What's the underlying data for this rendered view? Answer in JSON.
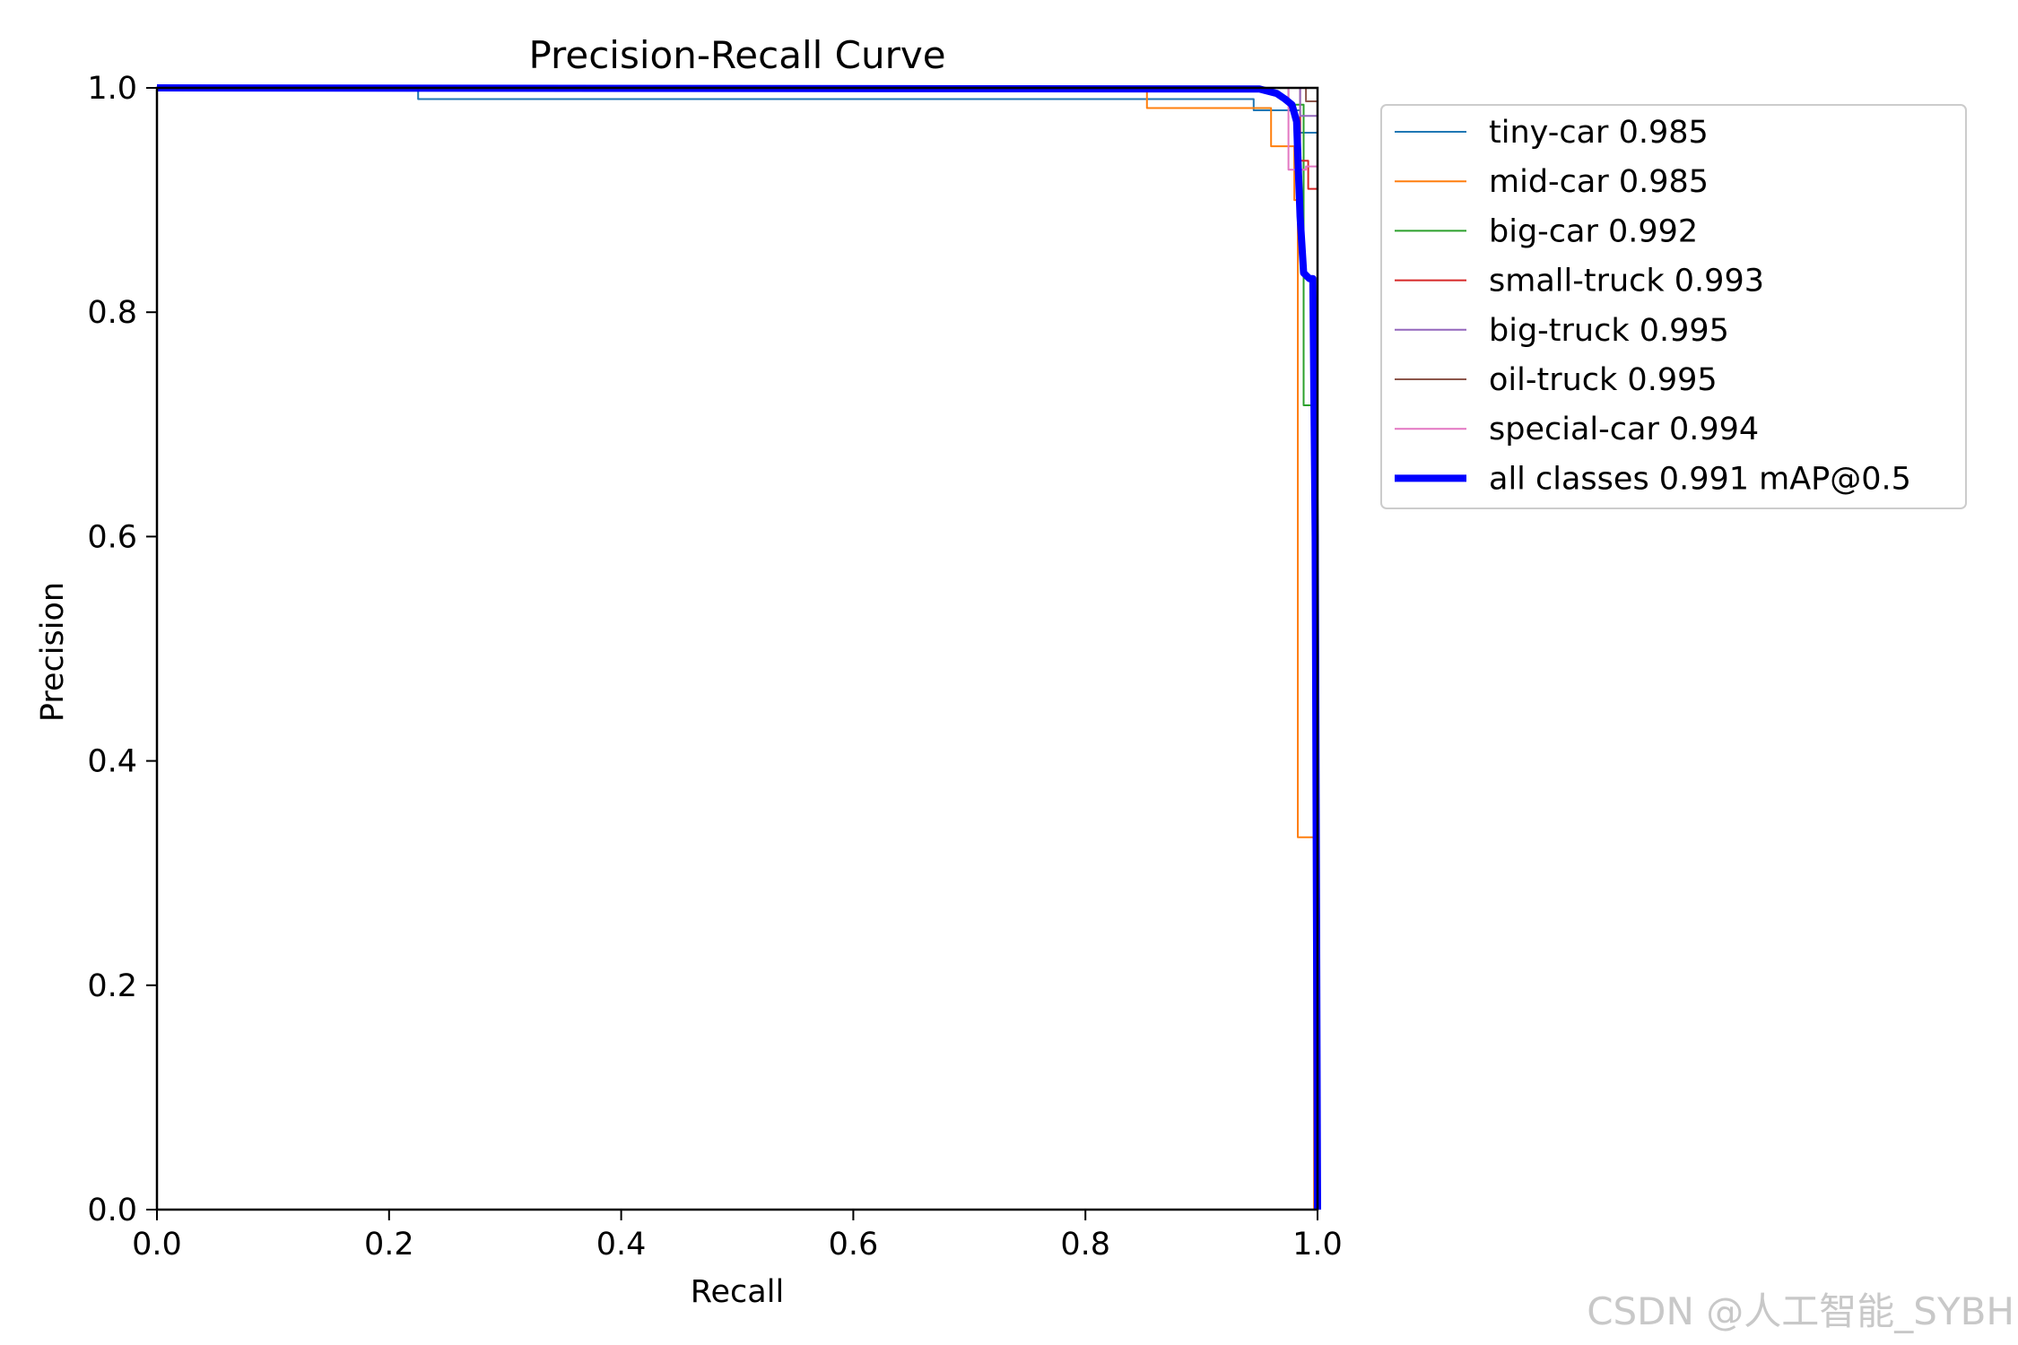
{
  "chart_data": {
    "type": "line",
    "title": "Precision-Recall Curve",
    "xlabel": "Recall",
    "ylabel": "Precision",
    "xlim": [
      0.0,
      1.0
    ],
    "ylim": [
      0.0,
      1.0
    ],
    "x_ticks": [
      "0.0",
      "0.2",
      "0.4",
      "0.6",
      "0.8",
      "1.0"
    ],
    "y_ticks": [
      "0.0",
      "0.2",
      "0.4",
      "0.6",
      "0.8",
      "1.0"
    ],
    "grid": false,
    "legend_position": "outside-right",
    "series": [
      {
        "name": "tiny-car 0.985",
        "color": "#1f77b4",
        "x": [
          0.0,
          0.225,
          0.225,
          0.945,
          0.945,
          0.985,
          0.985,
          1.0,
          1.0
        ],
        "y": [
          1.0,
          1.0,
          0.99,
          0.99,
          0.98,
          0.98,
          0.96,
          0.96,
          0.0
        ]
      },
      {
        "name": "mid-car 0.985",
        "color": "#ff7f0e",
        "x": [
          0.0,
          0.853,
          0.853,
          0.96,
          0.96,
          0.98,
          0.98,
          0.983,
          0.983,
          0.997,
          0.997
        ],
        "y": [
          1.0,
          1.0,
          0.982,
          0.982,
          0.948,
          0.948,
          0.9,
          0.9,
          0.332,
          0.332,
          0.0
        ]
      },
      {
        "name": "big-car 0.992",
        "color": "#2ca02c",
        "x": [
          0.0,
          0.975,
          0.975,
          0.988,
          0.988,
          0.998,
          0.998
        ],
        "y": [
          1.0,
          1.0,
          0.985,
          0.985,
          0.717,
          0.717,
          0.0
        ]
      },
      {
        "name": "small-truck 0.993",
        "color": "#d62728",
        "x": [
          0.0,
          0.985,
          0.985,
          0.992,
          0.992,
          1.0,
          1.0
        ],
        "y": [
          1.0,
          1.0,
          0.935,
          0.935,
          0.91,
          0.91,
          0.0
        ]
      },
      {
        "name": "big-truck 0.995",
        "color": "#9467bd",
        "x": [
          0.0,
          0.985,
          0.985,
          1.0,
          1.0
        ],
        "y": [
          1.0,
          1.0,
          0.975,
          0.975,
          0.0
        ]
      },
      {
        "name": "oil-truck 0.995",
        "color": "#8c564b",
        "x": [
          0.0,
          0.99,
          0.99,
          1.0,
          1.0
        ],
        "y": [
          1.0,
          1.0,
          0.988,
          0.988,
          0.0
        ]
      },
      {
        "name": "special-car 0.994",
        "color": "#e377c2",
        "x": [
          0.0,
          0.975,
          0.975,
          0.99,
          0.99,
          1.0,
          1.0
        ],
        "y": [
          1.0,
          1.0,
          0.927,
          0.927,
          0.93,
          0.93,
          0.0
        ]
      },
      {
        "name": "all classes 0.991 mAP@0.5",
        "color": "#0000ff",
        "emphasis": true,
        "x": [
          0.0,
          0.95,
          0.965,
          0.972,
          0.978,
          0.982,
          0.983,
          0.985,
          0.988,
          0.993,
          0.996,
          0.998,
          1.0
        ],
        "y": [
          1.0,
          0.999,
          0.995,
          0.99,
          0.985,
          0.97,
          0.94,
          0.885,
          0.835,
          0.83,
          0.83,
          0.6,
          0.0
        ]
      }
    ]
  },
  "watermark": "CSDN @人工智能_SYBH"
}
